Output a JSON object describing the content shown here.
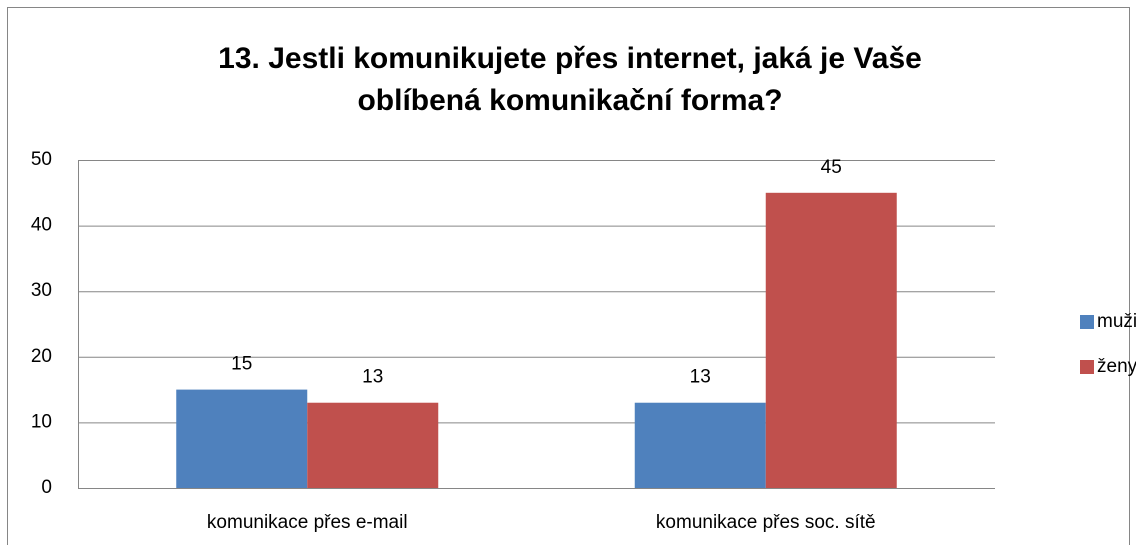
{
  "chart_data": {
    "type": "bar",
    "title": "13. Jestli komunikujete přes internet, jaká je Vaše oblíbená komunikační forma?",
    "categories": [
      "komunikace přes e-mail",
      "komunikace přes soc. sítě"
    ],
    "series": [
      {
        "name": "muži",
        "color": "#4f81bd",
        "values": [
          15,
          13
        ]
      },
      {
        "name": "ženy",
        "color": "#c0504d",
        "values": [
          13,
          45
        ]
      }
    ],
    "ylim": [
      0,
      50
    ],
    "yticks": [
      0,
      10,
      20,
      30,
      40,
      50
    ],
    "grid": true,
    "legend": "right"
  }
}
